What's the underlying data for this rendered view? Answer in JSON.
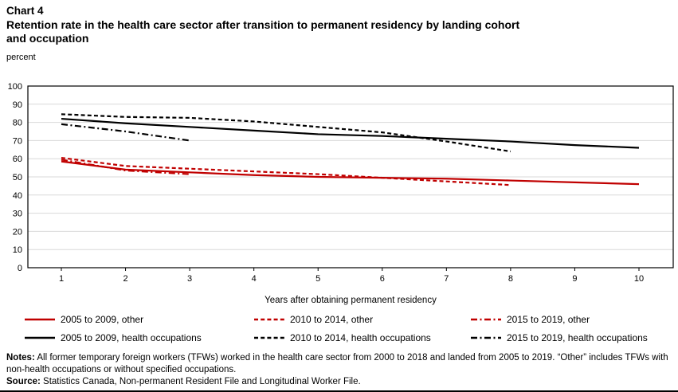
{
  "header": {
    "chart_label": "Chart 4",
    "title_line1": "Retention rate in the health care sector after transition to permanent residency by landing cohort",
    "title_line2": "and occupation",
    "unit_label": "percent"
  },
  "chart_data": {
    "type": "line",
    "x": [
      1,
      2,
      3,
      4,
      5,
      6,
      7,
      8,
      9,
      10
    ],
    "xlabel": "Years after obtaining permanent residency",
    "ylabel": "percent",
    "ylim": [
      0,
      100
    ],
    "ytick_step": 10,
    "grid": true,
    "legend_position": "bottom",
    "colors": {
      "other": "#c00000",
      "health": "#000000",
      "gridline": "#d9d9d9",
      "frame": "#000000"
    },
    "series": [
      {
        "name": "2005 to 2009, other",
        "color": "#c00000",
        "style": "solid",
        "values": [
          58.5,
          54,
          52.5,
          51,
          50,
          49.5,
          49,
          48,
          47,
          46
        ]
      },
      {
        "name": "2010 to 2014, other",
        "color": "#c00000",
        "style": "dashed",
        "values": [
          60.5,
          56,
          54.5,
          53,
          51.5,
          49.5,
          47.5,
          45.5
        ]
      },
      {
        "name": "2015 to 2019, other",
        "color": "#c00000",
        "style": "dashdot",
        "values": [
          59.5,
          53.5,
          51.5
        ]
      },
      {
        "name": "2005 to 2009, health occupations",
        "color": "#000000",
        "style": "solid",
        "values": [
          82,
          79.5,
          77.5,
          75.5,
          73.5,
          72.5,
          71,
          69.5,
          67.5,
          66
        ]
      },
      {
        "name": "2010 to 2014, health occupations",
        "color": "#000000",
        "style": "dashed",
        "values": [
          84.5,
          83,
          82.5,
          80.5,
          77.5,
          74.5,
          69.5,
          64
        ]
      },
      {
        "name": "2015 to 2019, health occupations",
        "color": "#000000",
        "style": "dashdot",
        "values": [
          79,
          75,
          70
        ]
      }
    ]
  },
  "notes": {
    "notes_label": "Notes:",
    "notes_text": "All former temporary foreign workers (TFWs) worked in the health care sector from 2000 to 2018 and landed from 2005 to 2019. “Other” includes TFWs with non-health occupations or without specified occupations.",
    "source_label": "Source:",
    "source_text": "Statistics Canada, Non-permanent Resident File and Longitudinal Worker File."
  }
}
